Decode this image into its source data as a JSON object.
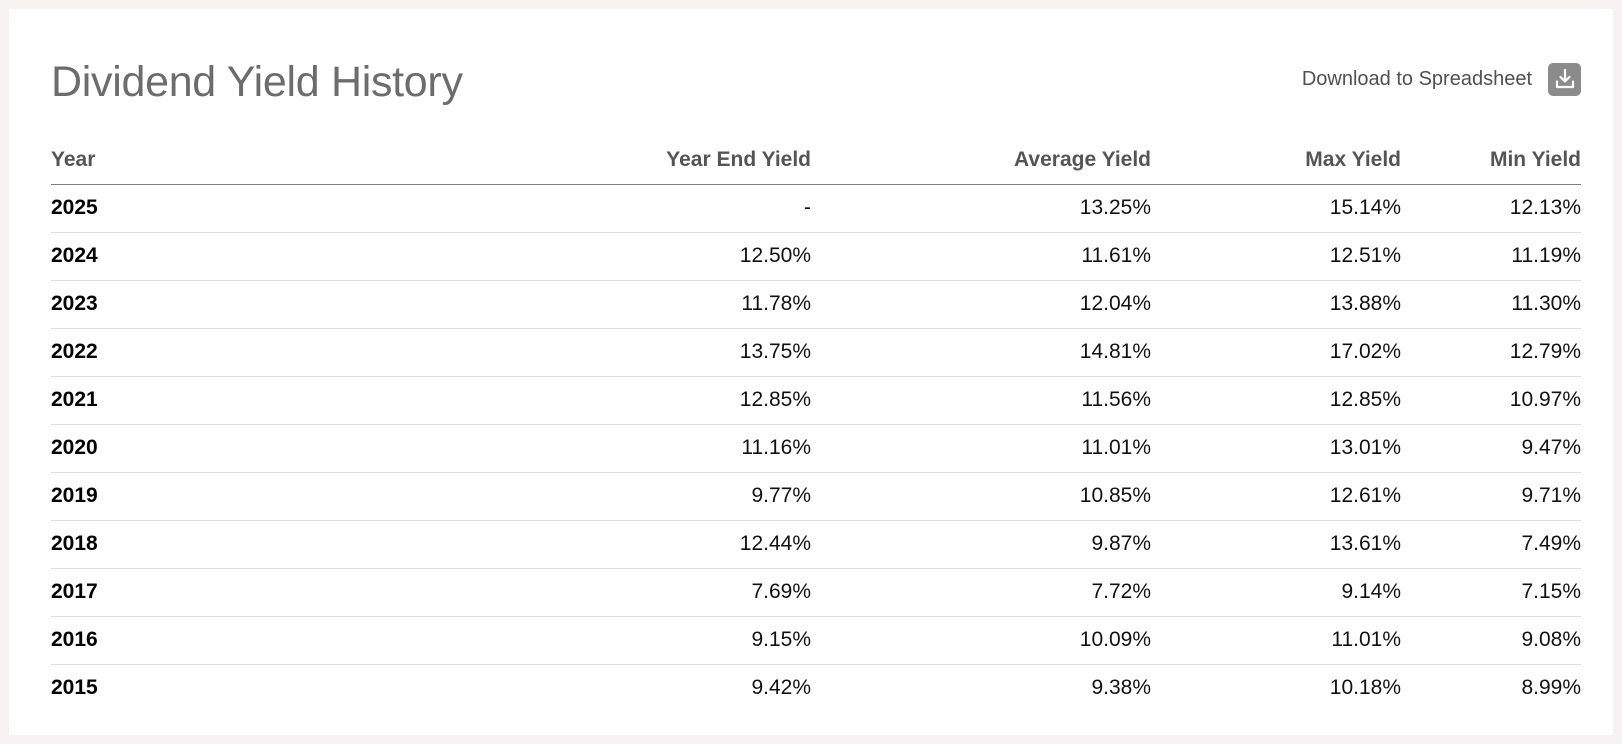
{
  "header": {
    "title": "Dividend Yield History",
    "download_label": "Download to Spreadsheet",
    "download_icon": "download-icon"
  },
  "table": {
    "columns": [
      "Year",
      "Year End Yield",
      "Average Yield",
      "Max Yield",
      "Min Yield"
    ],
    "rows": [
      {
        "year": "2025",
        "year_end": "-",
        "average": "13.25%",
        "max": "15.14%",
        "min": "12.13%"
      },
      {
        "year": "2024",
        "year_end": "12.50%",
        "average": "11.61%",
        "max": "12.51%",
        "min": "11.19%"
      },
      {
        "year": "2023",
        "year_end": "11.78%",
        "average": "12.04%",
        "max": "13.88%",
        "min": "11.30%"
      },
      {
        "year": "2022",
        "year_end": "13.75%",
        "average": "14.81%",
        "max": "17.02%",
        "min": "12.79%"
      },
      {
        "year": "2021",
        "year_end": "12.85%",
        "average": "11.56%",
        "max": "12.85%",
        "min": "10.97%"
      },
      {
        "year": "2020",
        "year_end": "11.16%",
        "average": "11.01%",
        "max": "13.01%",
        "min": "9.47%"
      },
      {
        "year": "2019",
        "year_end": "9.77%",
        "average": "10.85%",
        "max": "12.61%",
        "min": "9.71%"
      },
      {
        "year": "2018",
        "year_end": "12.44%",
        "average": "9.87%",
        "max": "13.61%",
        "min": "7.49%"
      },
      {
        "year": "2017",
        "year_end": "7.69%",
        "average": "7.72%",
        "max": "9.14%",
        "min": "7.15%"
      },
      {
        "year": "2016",
        "year_end": "9.15%",
        "average": "10.09%",
        "max": "11.01%",
        "min": "9.08%"
      },
      {
        "year": "2015",
        "year_end": "9.42%",
        "average": "9.38%",
        "max": "10.18%",
        "min": "8.99%"
      }
    ]
  }
}
